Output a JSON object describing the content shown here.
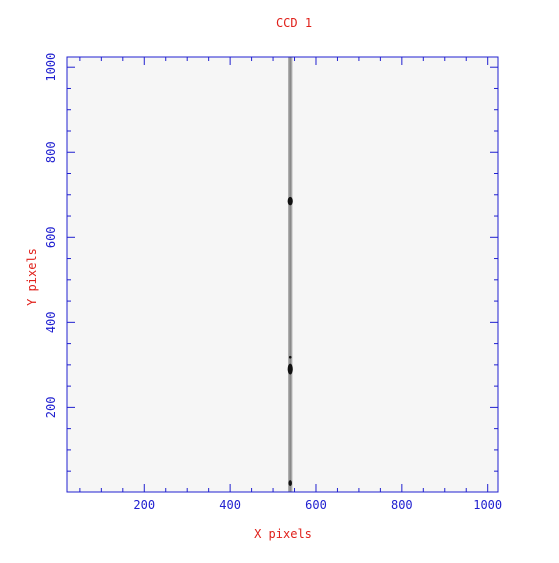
{
  "chart_data": {
    "type": "heatmap",
    "title": "CCD 1",
    "xlabel": "X pixels",
    "ylabel": "Y pixels",
    "xlim": [
      20,
      1024
    ],
    "ylim": [
      1,
      1024
    ],
    "x_ticks": [
      200,
      400,
      600,
      800,
      1000
    ],
    "y_ticks": [
      200,
      400,
      600,
      800,
      1000
    ],
    "colormap": "greyscale",
    "colors": {
      "title": "#e0201a",
      "axes": "#2020d0",
      "background_image": "#f6f6f6",
      "trace": "#a8a8a8",
      "blob": "#111111"
    },
    "features": [
      {
        "type": "vertical_trace",
        "x_center": 540,
        "x_width": 10,
        "y_range": [
          1,
          1024
        ]
      },
      {
        "type": "blob",
        "x": 540,
        "y": 685,
        "rx": 6,
        "ry": 10
      },
      {
        "type": "blob",
        "x": 540,
        "y": 290,
        "rx": 6,
        "ry": 13
      },
      {
        "type": "blob",
        "x": 540,
        "y": 318,
        "rx": 3,
        "ry": 3
      },
      {
        "type": "blob",
        "x": 540,
        "y": 22,
        "rx": 4,
        "ry": 7
      }
    ]
  }
}
